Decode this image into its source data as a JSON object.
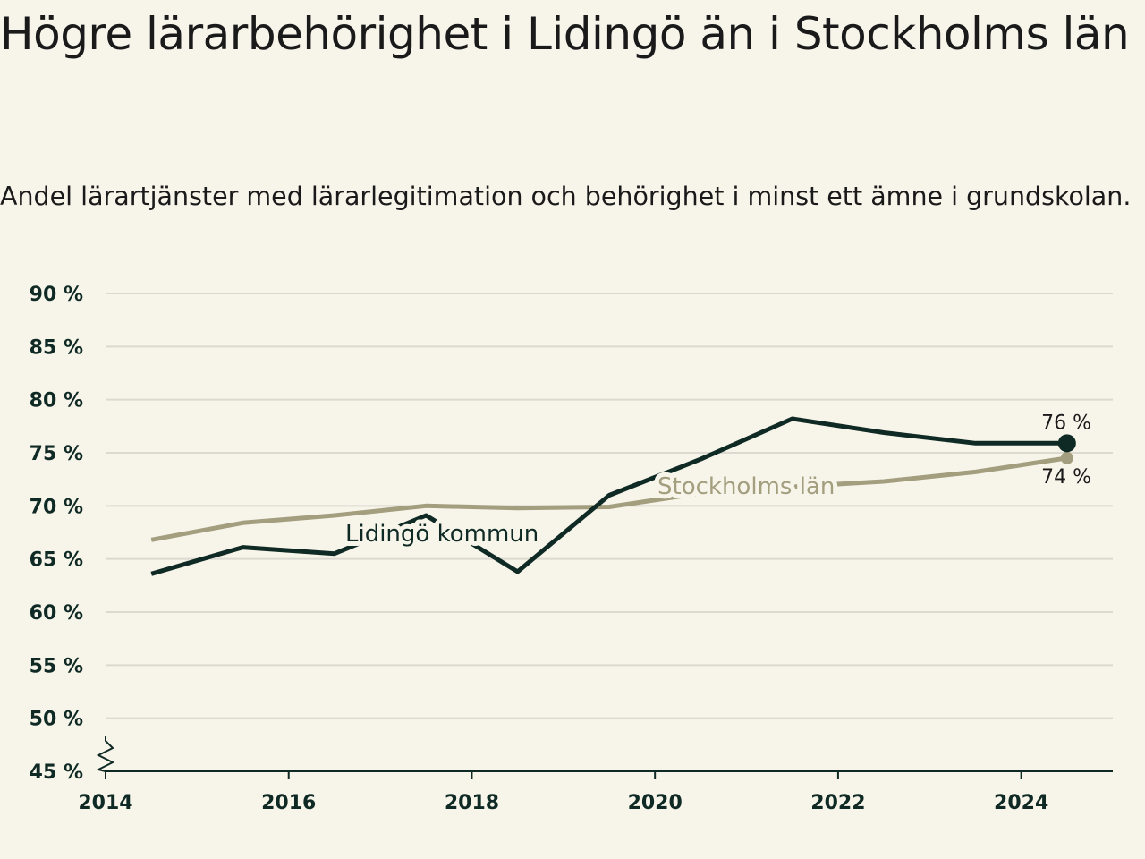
{
  "title": "Högre lärarbehörighet i Lidingö än i Stockholms län",
  "subtitle": "Andel lärartjänster med lärarlegitimation och behörighet i minst ett ämne i grundskolan.",
  "colors": {
    "background": "#f7f4ea",
    "lidingo": "#0f2a24",
    "stockholm": "#a39e7e",
    "grid": "#dcd9d1",
    "axis": "#0f2a24"
  },
  "chart_data": {
    "type": "line",
    "title": "Högre lärarbehörighet i Lidingö än i Stockholms län",
    "subtitle": "Andel lärartjänster med lärarlegitimation och behörighet i minst ett ämne i grundskolan.",
    "xlabel": "",
    "ylabel": "",
    "xlim": [
      2014,
      2025
    ],
    "ylim": [
      45,
      90
    ],
    "grid": true,
    "axis_break": true,
    "x_ticks": [
      2014,
      2016,
      2018,
      2020,
      2022,
      2024
    ],
    "x_tick_labels": [
      "2014",
      "2016",
      "2018",
      "2020",
      "2022",
      "2024"
    ],
    "y_ticks": [
      45,
      50,
      55,
      60,
      65,
      70,
      75,
      80,
      85,
      90
    ],
    "y_tick_labels": [
      "45 %",
      "50 %",
      "55 %",
      "60 %",
      "65 %",
      "70 %",
      "75 %",
      "80 %",
      "85 %",
      "90 %"
    ],
    "x": [
      2014.5,
      2015.5,
      2016.5,
      2017.5,
      2018.5,
      2019.5,
      2020.5,
      2021.5,
      2022.5,
      2023.5,
      2024.5
    ],
    "series": [
      {
        "name": "Stockholms län",
        "color": "#a39e7e",
        "values": [
          66.8,
          68.4,
          69.1,
          70.0,
          69.8,
          69.9,
          71.2,
          71.8,
          72.3,
          73.2,
          74.5
        ],
        "end_label": "74 %"
      },
      {
        "name": "Lidingö kommun",
        "color": "#0f2a24",
        "values": [
          63.6,
          66.1,
          65.5,
          69.1,
          63.8,
          71.0,
          74.4,
          78.2,
          76.9,
          75.9,
          75.9
        ],
        "end_label": "76 %"
      }
    ]
  }
}
